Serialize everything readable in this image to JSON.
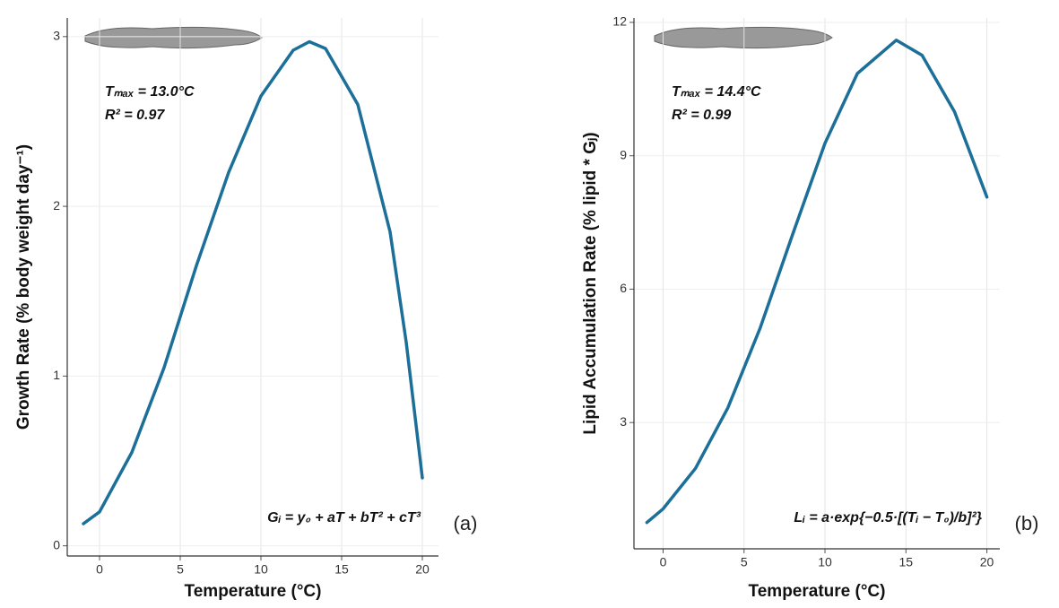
{
  "chart_data": [
    {
      "type": "line",
      "x_label": "Temperature (°C)",
      "y_label": "Growth Rate (% body weight day⁻¹)",
      "panel_label": "(a)",
      "annotations": [
        "Tₘₐₓ = 13.0°C",
        "R² = 0.97"
      ],
      "equation": "Gᵢ = y₀ + aT + bT² + cT³",
      "x": [
        -1,
        0,
        2,
        4,
        6,
        8,
        10,
        12,
        13,
        14,
        16,
        18,
        19,
        20
      ],
      "series": [
        {
          "color": "#1b6f99",
          "values": [
            0.13,
            0.2,
            0.55,
            1.05,
            1.65,
            2.2,
            2.65,
            2.92,
            2.97,
            2.93,
            2.6,
            1.85,
            1.2,
            0.4
          ]
        }
      ],
      "xlim": [
        -2,
        21
      ],
      "ylim": [
        -0.06,
        3.11
      ],
      "xticks": [
        0,
        5,
        10,
        15,
        20
      ],
      "yticks": [
        0,
        1,
        2,
        3
      ],
      "grid": true
    },
    {
      "type": "line",
      "x_label": "Temperature (°C)",
      "y_label": "Lipid Accumulation Rate  (% lipid * Gⱼ)",
      "panel_label": "(b)",
      "annotations": [
        "Tₘₐₓ = 14.4°C",
        "R² = 0.99"
      ],
      "equation": "Lᵢ = a·exp{−0.5·[(Tᵢ − T₀)/b]²}",
      "x": [
        -1,
        0,
        2,
        4,
        6,
        8,
        10,
        12,
        14.4,
        16,
        18,
        20
      ],
      "series": [
        {
          "color": "#1b6f99",
          "values": [
            0.75,
            1.06,
            1.97,
            3.33,
            5.13,
            7.23,
            9.28,
            10.85,
            11.6,
            11.26,
            9.99,
            8.07
          ]
        }
      ],
      "xlim": [
        -1.8,
        20.8
      ],
      "ylim": [
        0.16,
        12.1
      ],
      "xticks": [
        0,
        5,
        10,
        15,
        20
      ],
      "yticks": [
        3,
        6,
        9,
        12
      ],
      "grid": true
    }
  ]
}
